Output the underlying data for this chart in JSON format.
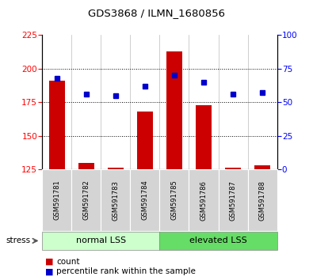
{
  "title": "GDS3868 / ILMN_1680856",
  "samples": [
    "GSM591781",
    "GSM591782",
    "GSM591783",
    "GSM591784",
    "GSM591785",
    "GSM591786",
    "GSM591787",
    "GSM591788"
  ],
  "counts": [
    191,
    130,
    126,
    168,
    213,
    173,
    126,
    128
  ],
  "percentiles": [
    68,
    56,
    55,
    62,
    70,
    65,
    56,
    57
  ],
  "bar_bottom": 125,
  "ylim_left": [
    125,
    225
  ],
  "ylim_right": [
    0,
    100
  ],
  "yticks_left": [
    125,
    150,
    175,
    200,
    225
  ],
  "yticks_right": [
    0,
    25,
    50,
    75,
    100
  ],
  "bar_color": "#cc0000",
  "dot_color": "#0000cc",
  "group1_label": "normal LSS",
  "group1_color": "#ccffcc",
  "group2_label": "elevated LSS",
  "group2_color": "#66dd66",
  "stress_label": "stress",
  "count_label": "count",
  "pct_label": "percentile rank within the sample",
  "grid_values": [
    150,
    175,
    200
  ],
  "tick_bg_color": "#d4d4d4",
  "bg_color": "#ffffff"
}
